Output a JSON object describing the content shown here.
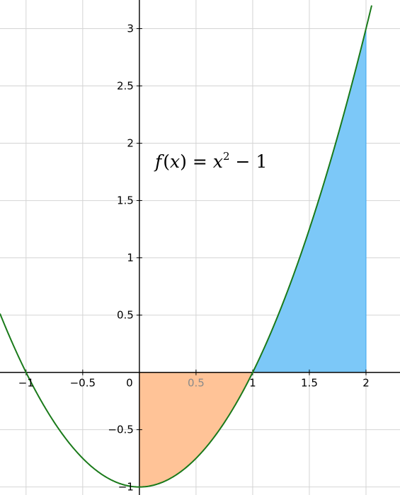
{
  "chart_data": {
    "type": "line",
    "function_label": "f(x) = x^2 - 1",
    "formula": {
      "fname": "f",
      "open": "(",
      "var": "x",
      "close": ")",
      "equals": "=",
      "base": "x",
      "exponent": "2",
      "minus": "−",
      "constant": "1"
    },
    "x_range": [
      -1.23,
      2.3
    ],
    "y_range": [
      -1.07,
      3.25
    ],
    "grid": true,
    "x_ticks": [
      {
        "value": -1,
        "label": "−1"
      },
      {
        "value": -0.5,
        "label": "−0.5"
      },
      {
        "value": 0,
        "label": "0"
      },
      {
        "value": 0.5,
        "label": "0.5"
      },
      {
        "value": 1,
        "label": "1"
      },
      {
        "value": 1.5,
        "label": "1.5"
      },
      {
        "value": 2,
        "label": "2"
      }
    ],
    "y_ticks": [
      {
        "value": -1,
        "label": "−1"
      },
      {
        "value": -0.5,
        "label": "−0.5"
      },
      {
        "value": 0.5,
        "label": "0.5"
      },
      {
        "value": 1,
        "label": "1"
      },
      {
        "value": 1.5,
        "label": "1.5"
      },
      {
        "value": 2,
        "label": "2"
      },
      {
        "value": 2.5,
        "label": "2.5"
      },
      {
        "value": 3,
        "label": "3"
      }
    ],
    "series": [
      {
        "name": "f(x) = x^2 - 1",
        "x": [
          -1.23,
          -1,
          -0.5,
          0,
          0.5,
          1,
          1.5,
          2,
          2.05
        ],
        "y": [
          0.513,
          0,
          -0.75,
          -1,
          -0.75,
          0,
          1.25,
          3,
          3.2025
        ]
      }
    ],
    "shaded_regions": [
      {
        "name": "area-below-axis",
        "from": 0,
        "to": 1,
        "color": "#ffc397"
      },
      {
        "name": "area-above-axis",
        "from": 1,
        "to": 2,
        "color": "#7cc8f8"
      }
    ],
    "colors": {
      "curve": "#1a7a1a",
      "grid": "#d4d4d4",
      "axis": "#000000",
      "area_below_edge": "#f0a070",
      "area_above_edge": "#3fa8ef"
    }
  }
}
